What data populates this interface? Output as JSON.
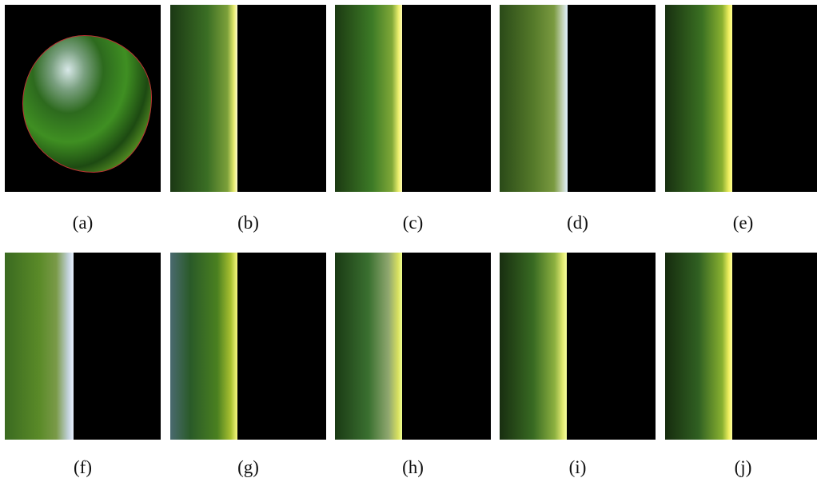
{
  "figure": {
    "panels": [
      {
        "label": "(a)"
      },
      {
        "label": "(b)"
      },
      {
        "label": "(c)"
      },
      {
        "label": "(d)"
      },
      {
        "label": "(e)"
      },
      {
        "label": "(f)"
      },
      {
        "label": "(g)"
      },
      {
        "label": "(h)"
      },
      {
        "label": "(i)"
      },
      {
        "label": "(j)"
      }
    ]
  }
}
